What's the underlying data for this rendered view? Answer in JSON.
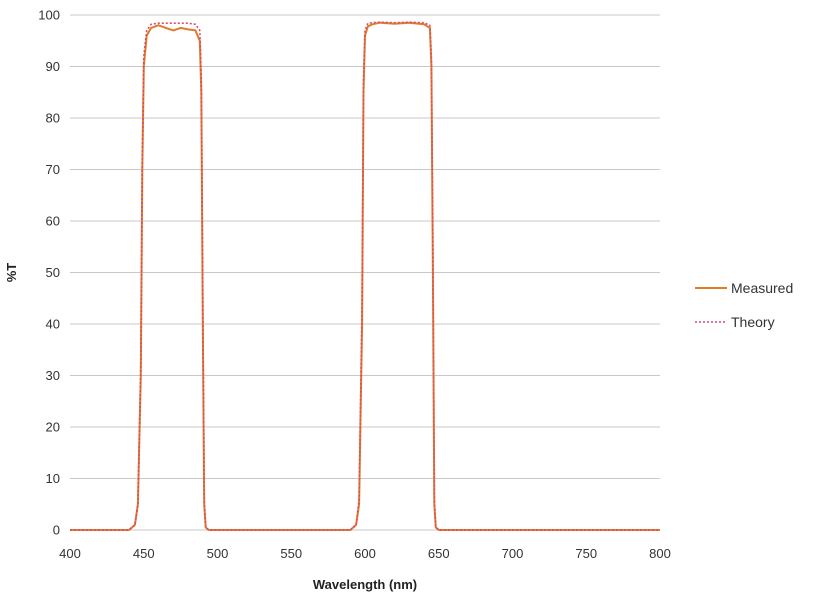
{
  "chart_data": {
    "type": "line",
    "title": "",
    "xlabel": "Wavelength (nm)",
    "ylabel": "%T",
    "xlim": [
      400,
      800
    ],
    "ylim": [
      0,
      100
    ],
    "x_ticks": [
      400,
      450,
      500,
      550,
      600,
      650,
      700,
      750,
      800
    ],
    "y_ticks": [
      0,
      10,
      20,
      30,
      40,
      50,
      60,
      70,
      80,
      90,
      100
    ],
    "grid": "horizontal",
    "legend_position": "right",
    "series": [
      {
        "name": "Measured",
        "color": "#E07B2A",
        "style": "solid",
        "x": [
          400,
          440,
          444,
          446,
          448,
          449,
          450,
          452,
          455,
          460,
          465,
          470,
          475,
          480,
          485,
          488,
          489,
          490,
          491,
          492,
          494,
          500,
          550,
          590,
          594,
          596,
          598,
          599,
          600,
          602,
          605,
          610,
          620,
          630,
          640,
          644,
          645,
          646,
          647,
          648,
          650,
          700,
          800
        ],
        "y": [
          0,
          0,
          1,
          5,
          30,
          70,
          90,
          96,
          97.5,
          98,
          97.5,
          97,
          97.5,
          97.2,
          97,
          95,
          85,
          40,
          5,
          0.5,
          0,
          0,
          0,
          0,
          1,
          5,
          40,
          85,
          96,
          97.8,
          98.2,
          98.5,
          98.3,
          98.5,
          98.2,
          97.5,
          90,
          50,
          5,
          0.5,
          0,
          0,
          0
        ]
      },
      {
        "name": "Theory",
        "color": "#D94B6A",
        "style": "dotted",
        "x": [
          400,
          440,
          444,
          446,
          448,
          449,
          450,
          452,
          455,
          460,
          470,
          480,
          485,
          488,
          489,
          490,
          491,
          492,
          494,
          500,
          550,
          590,
          594,
          596,
          598,
          599,
          600,
          602,
          605,
          610,
          620,
          630,
          640,
          644,
          645,
          646,
          647,
          648,
          650,
          700,
          800
        ],
        "y": [
          0,
          0,
          1,
          5,
          32,
          72,
          92,
          97,
          98.2,
          98.4,
          98.4,
          98.4,
          98.2,
          97,
          88,
          45,
          6,
          0.5,
          0,
          0,
          0,
          0,
          1,
          6,
          45,
          88,
          97,
          98.4,
          98.5,
          98.6,
          98.5,
          98.6,
          98.5,
          98,
          92,
          55,
          6,
          0.5,
          0,
          0,
          0
        ]
      }
    ]
  }
}
